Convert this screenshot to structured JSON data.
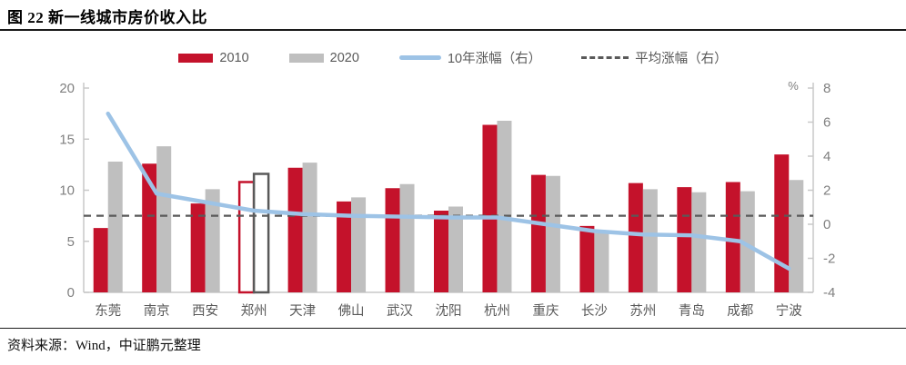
{
  "header": {
    "title": "图 22 新一线城市房价收入比"
  },
  "legend": {
    "items": [
      {
        "label": "2010",
        "kind": "bar",
        "color": "#C4122B"
      },
      {
        "label": "2020",
        "kind": "bar",
        "color": "#BFBFBF"
      },
      {
        "label": "10年涨幅（右）",
        "kind": "line",
        "color": "#9DC3E6"
      },
      {
        "label": "平均涨幅（右）",
        "kind": "dash",
        "color": "#595959"
      }
    ]
  },
  "chart_data": {
    "type": "bar",
    "title": "图 22 新一线城市房价收入比",
    "categories": [
      "东莞",
      "南京",
      "西安",
      "郑州",
      "天津",
      "佛山",
      "武汉",
      "沈阳",
      "杭州",
      "重庆",
      "长沙",
      "苏州",
      "青岛",
      "成都",
      "宁波"
    ],
    "series": [
      {
        "name": "2010",
        "type": "bar",
        "axis": "left",
        "color": "#C4122B",
        "values": [
          6.3,
          12.6,
          8.7,
          10.8,
          12.2,
          8.9,
          10.2,
          8.0,
          16.4,
          11.5,
          6.5,
          10.7,
          10.3,
          10.8,
          13.5
        ]
      },
      {
        "name": "2020",
        "type": "bar",
        "axis": "left",
        "color": "#BFBFBF",
        "values": [
          12.8,
          14.3,
          10.1,
          11.6,
          12.7,
          9.3,
          10.6,
          8.4,
          16.8,
          11.4,
          5.8,
          10.1,
          9.8,
          9.9,
          11.0
        ]
      },
      {
        "name": "10年涨幅（右）",
        "type": "line",
        "axis": "right",
        "color": "#9DC3E6",
        "values": [
          6.5,
          1.8,
          1.3,
          0.8,
          0.6,
          0.5,
          0.45,
          0.4,
          0.4,
          0.0,
          -0.4,
          -0.6,
          -0.65,
          -1.0,
          -2.6
        ]
      },
      {
        "name": "平均涨幅（右）",
        "type": "dashed-line",
        "axis": "right",
        "color": "#595959",
        "value": 0.5
      }
    ],
    "highlight_category": "郑州",
    "highlight_style": "hollow-outline",
    "left_axis": {
      "min": 0,
      "max": 20,
      "ticks": [
        0,
        5,
        10,
        15,
        20
      ]
    },
    "right_axis": {
      "min": -4,
      "max": 8,
      "ticks": [
        -4,
        -2,
        0,
        2,
        4,
        6,
        8
      ],
      "unit": "%"
    },
    "grid": "off",
    "legend_position": "top"
  },
  "footer": {
    "source": "资料来源：Wind，中证鹏元整理"
  }
}
